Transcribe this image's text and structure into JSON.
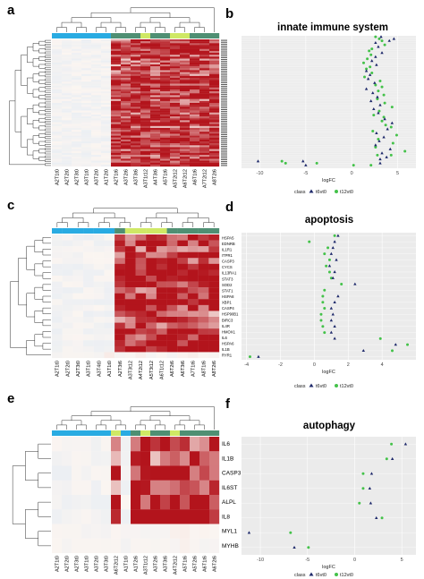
{
  "figure": {
    "letters": [
      "a",
      "b",
      "c",
      "d",
      "e",
      "f"
    ],
    "colors": {
      "bar_a": "#29abe2",
      "bar_b": "#cfe865",
      "bar_c": "#4f8f73",
      "heat_low": "#dce9f5",
      "heat_mid": "#fbf5f1",
      "heat_high": "#b3141c",
      "t6t0": "#1f2a6b",
      "t12t0": "#44c24a",
      "panel_bg": "#ebebeb",
      "grid": "#ffffff"
    }
  },
  "legend": {
    "title": "class",
    "t6": "t6vt0",
    "t12": "t12vt0"
  },
  "chart_data": [
    {
      "id": "a",
      "type": "heatmap",
      "samples": [
        "A2T1t0",
        "A2T2t0",
        "A2T3t0",
        "A3T1t0",
        "A3T2t0",
        "A1T2t0",
        "A2T1t6",
        "A3T2t6",
        "A3T3t6",
        "A3T1t12",
        "A4T3t6",
        "A5T1t6",
        "A5T2t12",
        "A6T2t12",
        "A6T1t6",
        "A7T2t12",
        "A8T2t6"
      ],
      "sample_class": [
        "a",
        "a",
        "a",
        "a",
        "a",
        "a",
        "c",
        "c",
        "c",
        "b",
        "c",
        "c",
        "b",
        "b",
        "c",
        "c",
        "c"
      ],
      "row_count": 66,
      "seed": 7
    },
    {
      "id": "b",
      "type": "scatter",
      "title": "innate immune system",
      "xlabel": "logFC",
      "xlim": [
        -12,
        7
      ],
      "xticks": [
        -10,
        -5,
        0,
        5
      ],
      "row_count": 66,
      "points_t6": [
        [
          3.2,
          1
        ],
        [
          4.6,
          2
        ],
        [
          4.1,
          3
        ],
        [
          2.6,
          4
        ],
        [
          2.9,
          6
        ],
        [
          3.3,
          9
        ],
        [
          2.6,
          11
        ],
        [
          2.2,
          13
        ],
        [
          2.7,
          15
        ],
        [
          1.6,
          18
        ],
        [
          2.0,
          20
        ],
        [
          1.8,
          22
        ],
        [
          2.5,
          24
        ],
        [
          1.6,
          27
        ],
        [
          2.3,
          29
        ],
        [
          2.8,
          31
        ],
        [
          2.1,
          33
        ],
        [
          3.1,
          35
        ],
        [
          2.4,
          37
        ],
        [
          2.9,
          39
        ],
        [
          3.6,
          42
        ],
        [
          4.4,
          44
        ],
        [
          3.9,
          47
        ],
        [
          2.7,
          49
        ],
        [
          3.5,
          51
        ],
        [
          3.0,
          53
        ],
        [
          2.6,
          55
        ],
        [
          4.2,
          57
        ],
        [
          3.3,
          59
        ],
        [
          3.8,
          61
        ],
        [
          3.1,
          62
        ],
        [
          -10.2,
          63
        ],
        [
          -5.3,
          63
        ],
        [
          3.1,
          64
        ],
        [
          -5.0,
          65
        ]
      ],
      "points_t12": [
        [
          2.6,
          1
        ],
        [
          3.0,
          2
        ],
        [
          3.3,
          3
        ],
        [
          3.6,
          5
        ],
        [
          2.2,
          7
        ],
        [
          1.9,
          8
        ],
        [
          2.1,
          10
        ],
        [
          1.7,
          12
        ],
        [
          1.3,
          14
        ],
        [
          2.0,
          16
        ],
        [
          1.6,
          17
        ],
        [
          2.2,
          19
        ],
        [
          1.4,
          21
        ],
        [
          3.1,
          23
        ],
        [
          2.6,
          25
        ],
        [
          3.3,
          26
        ],
        [
          2.9,
          28
        ],
        [
          3.5,
          30
        ],
        [
          2.8,
          32
        ],
        [
          3.6,
          34
        ],
        [
          4.4,
          36
        ],
        [
          3.0,
          38
        ],
        [
          2.4,
          40
        ],
        [
          3.5,
          41
        ],
        [
          3.3,
          43
        ],
        [
          3.7,
          45
        ],
        [
          4.3,
          46
        ],
        [
          2.3,
          48
        ],
        [
          4.9,
          50
        ],
        [
          2.9,
          52
        ],
        [
          4.5,
          54
        ],
        [
          2.6,
          56
        ],
        [
          5.8,
          58
        ],
        [
          2.8,
          60
        ],
        [
          4.3,
          60
        ],
        [
          -7.6,
          63
        ],
        [
          -7.2,
          64
        ],
        [
          -3.8,
          64
        ],
        [
          0.2,
          65
        ],
        [
          2.1,
          65
        ]
      ]
    },
    {
      "id": "c",
      "type": "heatmap",
      "samples": [
        "A2T1t0",
        "A2T2t0",
        "A2T3t0",
        "A3T1t0",
        "A3T4t0",
        "A1T1t0",
        "A2T3t6",
        "A3T3t12",
        "A4T2t12",
        "A5T3t12",
        "A6T1t12",
        "A6T2t6",
        "A6T3t6",
        "A7T1t6",
        "A8T1t6",
        "A8T2t6"
      ],
      "sample_class": [
        "a",
        "a",
        "a",
        "a",
        "a",
        "a",
        "c",
        "b",
        "b",
        "b",
        "b",
        "c",
        "c",
        "c",
        "c",
        "c"
      ],
      "genes": [
        "HSPA5",
        "EDNRB",
        "IL1R1",
        "ITPR1",
        "CASP3",
        "CYCS",
        "IL13RA1",
        "STAT3",
        "SOD2",
        "STAT1",
        "HSPA8",
        "XBP1",
        "CASP4",
        "HSP90B1",
        "BIRC3",
        "IL4R",
        "HMOX1",
        "IL6",
        "HSPA6",
        "IL1B",
        "RYR1"
      ],
      "seed": 13
    },
    {
      "id": "d",
      "type": "scatter",
      "title": "apoptosis",
      "xlabel": "logFC",
      "xlim": [
        -4.3,
        6
      ],
      "xticks": [
        -4,
        -2,
        0,
        2,
        4
      ],
      "row_count": 21,
      "points_t6": [
        [
          1.4,
          1
        ],
        [
          1.2,
          2
        ],
        [
          1.1,
          3
        ],
        [
          1.0,
          4
        ],
        [
          1.3,
          5
        ],
        [
          0.9,
          6
        ],
        [
          1.2,
          7
        ],
        [
          1.1,
          8
        ],
        [
          2.4,
          9
        ],
        [
          1.4,
          11
        ],
        [
          1.2,
          12
        ],
        [
          1.0,
          13
        ],
        [
          1.1,
          14
        ],
        [
          1.0,
          15
        ],
        [
          1.2,
          16
        ],
        [
          1.0,
          17
        ],
        [
          1.2,
          18
        ],
        [
          4.8,
          19
        ],
        [
          2.9,
          20
        ],
        [
          -3.3,
          21
        ]
      ],
      "points_t12": [
        [
          1.2,
          1
        ],
        [
          -0.3,
          2
        ],
        [
          0.8,
          3
        ],
        [
          0.6,
          4
        ],
        [
          0.9,
          5
        ],
        [
          0.7,
          6
        ],
        [
          0.9,
          7
        ],
        [
          1.0,
          8
        ],
        [
          1.6,
          9
        ],
        [
          0.6,
          10
        ],
        [
          0.5,
          11
        ],
        [
          0.5,
          12
        ],
        [
          0.6,
          13
        ],
        [
          0.4,
          14
        ],
        [
          0.4,
          15
        ],
        [
          0.5,
          16
        ],
        [
          0.6,
          17
        ],
        [
          3.9,
          18
        ],
        [
          5.5,
          19
        ],
        [
          4.6,
          20
        ],
        [
          -3.8,
          21
        ]
      ]
    },
    {
      "id": "e",
      "type": "heatmap",
      "samples": [
        "A2T1t0",
        "A2T2t0",
        "A2T3t0",
        "A3T1t0",
        "A3T2t0",
        "A3T3t0",
        "A6T2t12",
        "A1T1t0",
        "A1T2t6",
        "A3T1t12",
        "A3T2t6",
        "A3T3t6",
        "A4T2t12",
        "A5T1t6",
        "A5T2t6",
        "A6T1t6",
        "A6T2t6"
      ],
      "sample_class": [
        "a",
        "a",
        "a",
        "a",
        "a",
        "a",
        "b",
        "a",
        "c",
        "b",
        "c",
        "c",
        "b",
        "c",
        "c",
        "c",
        "c"
      ],
      "genes": [
        "IL6",
        "IL1B",
        "CASP3",
        "IL6ST",
        "ALPL",
        "IL8",
        "MYL1",
        "MYHB"
      ],
      "seed": 29
    },
    {
      "id": "f",
      "type": "scatter",
      "title": "autophagy",
      "xlabel": "logFC",
      "xlim": [
        -12,
        6.5
      ],
      "xticks": [
        -10,
        -5,
        0,
        5
      ],
      "row_count": 8,
      "points_t6": [
        [
          5.4,
          1
        ],
        [
          4.0,
          2
        ],
        [
          1.8,
          3
        ],
        [
          1.6,
          4
        ],
        [
          1.7,
          5
        ],
        [
          2.3,
          6
        ],
        [
          -11.2,
          7
        ],
        [
          -6.4,
          8
        ]
      ],
      "points_t12": [
        [
          3.9,
          1
        ],
        [
          3.4,
          2
        ],
        [
          0.9,
          3
        ],
        [
          0.9,
          4
        ],
        [
          0.5,
          5
        ],
        [
          2.9,
          6
        ],
        [
          -6.8,
          7
        ],
        [
          -4.9,
          8
        ]
      ]
    }
  ]
}
